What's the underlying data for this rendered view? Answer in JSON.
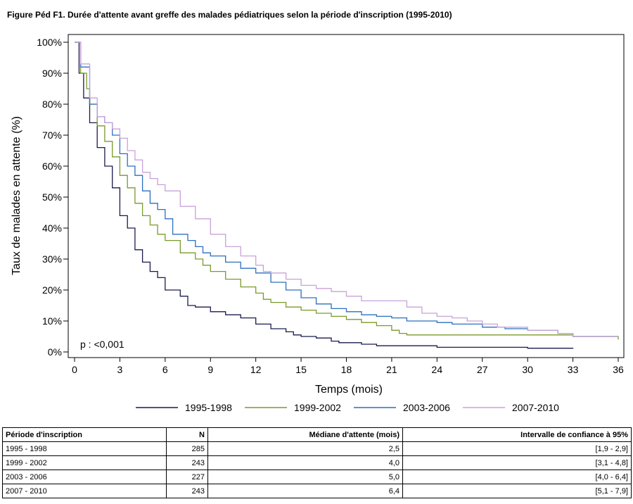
{
  "figure": {
    "title": "Figure Péd F1. Durée d'attente avant greffe des malades pédiatriques selon la période d'inscription (1995-2010)"
  },
  "chart_data": {
    "type": "line",
    "xlabel": "Temps (mois)",
    "ylabel": "Taux de malades en attente (%)",
    "xlim": [
      0,
      36
    ],
    "ylim": [
      0,
      100
    ],
    "x_ticks": [
      0,
      3,
      6,
      9,
      12,
      15,
      18,
      21,
      24,
      27,
      30,
      33,
      36
    ],
    "y_ticks": [
      0,
      10,
      20,
      30,
      40,
      50,
      60,
      70,
      80,
      90,
      100
    ],
    "y_tick_suffix": "%",
    "grid": false,
    "legend_position": "bottom",
    "annotation": "p : <0,001",
    "series": [
      {
        "name": "1995-1998",
        "color": "#1a1a4e",
        "points": [
          [
            0,
            100
          ],
          [
            0.3,
            90
          ],
          [
            0.6,
            82
          ],
          [
            1,
            74
          ],
          [
            1.5,
            66
          ],
          [
            2,
            60
          ],
          [
            2.5,
            53
          ],
          [
            3,
            44
          ],
          [
            3.5,
            40
          ],
          [
            4,
            33
          ],
          [
            4.5,
            29
          ],
          [
            5,
            26
          ],
          [
            5.5,
            24
          ],
          [
            6,
            20
          ],
          [
            7,
            18
          ],
          [
            7.5,
            15
          ],
          [
            8,
            14.5
          ],
          [
            9,
            13
          ],
          [
            10,
            12
          ],
          [
            11,
            11
          ],
          [
            12,
            9
          ],
          [
            13,
            7.5
          ],
          [
            14,
            6.5
          ],
          [
            14.5,
            5.5
          ],
          [
            15,
            5
          ],
          [
            16,
            4.5
          ],
          [
            17,
            3.5
          ],
          [
            17.5,
            3
          ],
          [
            18,
            3
          ],
          [
            19,
            2.5
          ],
          [
            20,
            2
          ],
          [
            21,
            2
          ],
          [
            24,
            1.5
          ],
          [
            30,
            1.2
          ],
          [
            33,
            1.1
          ]
        ]
      },
      {
        "name": "1999-2002",
        "color": "#7a9a2b",
        "points": [
          [
            0,
            100
          ],
          [
            0.4,
            90
          ],
          [
            0.8,
            85
          ],
          [
            1,
            80
          ],
          [
            1.5,
            73
          ],
          [
            2,
            68
          ],
          [
            2.5,
            63
          ],
          [
            3,
            57
          ],
          [
            3.5,
            53
          ],
          [
            4,
            48
          ],
          [
            4.5,
            44
          ],
          [
            5,
            41
          ],
          [
            5.5,
            38
          ],
          [
            6,
            36
          ],
          [
            7,
            32
          ],
          [
            8,
            30
          ],
          [
            8.5,
            28
          ],
          [
            9,
            26
          ],
          [
            10,
            23.5
          ],
          [
            11,
            21
          ],
          [
            12,
            19
          ],
          [
            12.5,
            17
          ],
          [
            13,
            16
          ],
          [
            14,
            14.5
          ],
          [
            15,
            13.5
          ],
          [
            16,
            12.5
          ],
          [
            17,
            11.5
          ],
          [
            18,
            10.5
          ],
          [
            19,
            9.5
          ],
          [
            20,
            8.5
          ],
          [
            21,
            7
          ],
          [
            21.5,
            6
          ],
          [
            22,
            5.5
          ],
          [
            24,
            5.5
          ],
          [
            27,
            5.5
          ],
          [
            30,
            5.5
          ],
          [
            33,
            5
          ],
          [
            36,
            4
          ]
        ]
      },
      {
        "name": "2003-2006",
        "color": "#2c6fbf",
        "points": [
          [
            0,
            100
          ],
          [
            0.4,
            92
          ],
          [
            1,
            80
          ],
          [
            1.5,
            76
          ],
          [
            2,
            74
          ],
          [
            2.5,
            70
          ],
          [
            3,
            64
          ],
          [
            3.5,
            60
          ],
          [
            4,
            57
          ],
          [
            4.5,
            52
          ],
          [
            5,
            48
          ],
          [
            5.5,
            46
          ],
          [
            6,
            43
          ],
          [
            6.5,
            38
          ],
          [
            7.5,
            36
          ],
          [
            8,
            34
          ],
          [
            8.5,
            32
          ],
          [
            9,
            31
          ],
          [
            10,
            29
          ],
          [
            11,
            27
          ],
          [
            12,
            25.5
          ],
          [
            13,
            22.5
          ],
          [
            14,
            20
          ],
          [
            15,
            17.5
          ],
          [
            16,
            15.5
          ],
          [
            17,
            14
          ],
          [
            18,
            13
          ],
          [
            19,
            12
          ],
          [
            20,
            11.5
          ],
          [
            21,
            11
          ],
          [
            22,
            10
          ],
          [
            24,
            9.5
          ],
          [
            25,
            9
          ],
          [
            27,
            8
          ],
          [
            28.5,
            7.5
          ],
          [
            30,
            7
          ],
          [
            32,
            6
          ],
          [
            33,
            5
          ],
          [
            36,
            5
          ]
        ]
      },
      {
        "name": "2007-2010",
        "color": "#c8a2d8",
        "points": [
          [
            0,
            100
          ],
          [
            0.4,
            93
          ],
          [
            1,
            82
          ],
          [
            1.5,
            76
          ],
          [
            2,
            74
          ],
          [
            2.5,
            72
          ],
          [
            3,
            69
          ],
          [
            3.5,
            65
          ],
          [
            4,
            62
          ],
          [
            4.5,
            58
          ],
          [
            5,
            56
          ],
          [
            5.5,
            54
          ],
          [
            6,
            52
          ],
          [
            7,
            47
          ],
          [
            8,
            43
          ],
          [
            9,
            38
          ],
          [
            10,
            34
          ],
          [
            11,
            31
          ],
          [
            12,
            28
          ],
          [
            12.5,
            26
          ],
          [
            13,
            25.5
          ],
          [
            14,
            23.5
          ],
          [
            15,
            21.5
          ],
          [
            16,
            20.5
          ],
          [
            17,
            19.5
          ],
          [
            18,
            18
          ],
          [
            19,
            16.5
          ],
          [
            21,
            16.5
          ],
          [
            22,
            14.5
          ],
          [
            23,
            12.5
          ],
          [
            24,
            11.5
          ],
          [
            25,
            11
          ],
          [
            26,
            10
          ],
          [
            27,
            9
          ],
          [
            28,
            8
          ],
          [
            30,
            7
          ],
          [
            32,
            6
          ],
          [
            33,
            5
          ],
          [
            36,
            5
          ]
        ]
      }
    ]
  },
  "table": {
    "headers": [
      "Période d'inscription",
      "N",
      "Médiane d'attente (mois)",
      "Intervalle de confiance à 95%"
    ],
    "rows": [
      [
        "1995 - 1998",
        "285",
        "2,5",
        "[1,9 - 2,9]"
      ],
      [
        "1999 - 2002",
        "243",
        "4,0",
        "[3,1 - 4,8]"
      ],
      [
        "2003 - 2006",
        "227",
        "5,0",
        "[4,0 - 6,4]"
      ],
      [
        "2007 - 2010",
        "243",
        "6,4",
        "[5,1 - 7,9]"
      ]
    ]
  }
}
